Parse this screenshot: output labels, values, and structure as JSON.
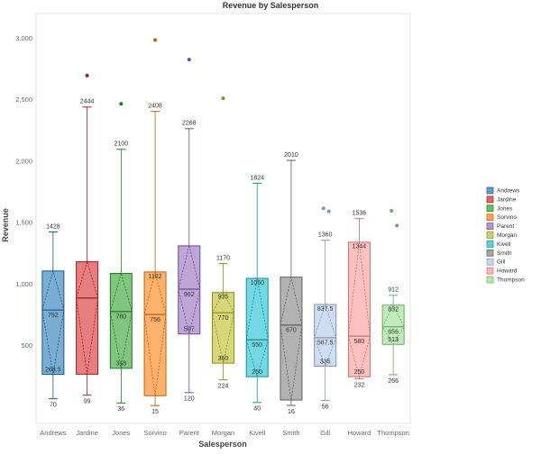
{
  "chart_data": {
    "type": "box",
    "title": "Revenue by Salesperson",
    "xlabel": "Salesperson",
    "ylabel": "Revenue",
    "ylim": [
      -130,
      3205
    ],
    "yticks": [
      500,
      1000,
      1500,
      2000,
      2500,
      3000
    ],
    "ytick_labels": [
      "500",
      "1,000",
      "1,500",
      "2,000",
      "2,500",
      "3,000"
    ],
    "grid": false,
    "legend_position": "right",
    "categories": [
      "Andrews",
      "Jardine",
      "Jones",
      "Sorvino",
      "Parent",
      "Morgan",
      "Kivell",
      "Smith",
      "Gill",
      "Howard",
      "Thompson"
    ],
    "series": [
      {
        "name": "Andrews",
        "color": "#1f77b4",
        "min": 70,
        "q1": 268.5,
        "median": 792,
        "q3": 1110,
        "max": 1428,
        "outliers": [],
        "labels": {
          "max": "1428",
          "median": "792",
          "q1": "268.5",
          "min": "70"
        }
      },
      {
        "name": "Jardine",
        "color": "#d62728",
        "min": 99,
        "q1": 270,
        "median": 890,
        "q3": 1185,
        "max": 2444,
        "outliers": [
          2700
        ],
        "labels": {
          "max": "2444",
          "min": "99"
        }
      },
      {
        "name": "Jones",
        "color": "#2ca02c",
        "min": 36,
        "q1": 318,
        "median": 780,
        "q3": 1090,
        "max": 2100,
        "outliers": [
          2470
        ],
        "labels": {
          "max": "2100",
          "median": "780",
          "q1": "318",
          "min": "36"
        }
      },
      {
        "name": "Sorvino",
        "color": "#ff7f0e",
        "min": 15,
        "q1": 95,
        "median": 756,
        "q3": 1102,
        "max": 2408,
        "outliers": [
          2990
        ],
        "labels": {
          "max": "2408",
          "q3": "1102",
          "median": "756",
          "min": "15"
        }
      },
      {
        "name": "Parent",
        "color": "#9467bd",
        "min": 120,
        "q1": 597,
        "median": 962,
        "q3": 1315,
        "max": 2268,
        "outliers": [
          2830
        ],
        "labels": {
          "max": "2268",
          "median": "962",
          "q1": "597",
          "min": "120"
        }
      },
      {
        "name": "Morgan",
        "color": "#bcbd22",
        "min": 224,
        "q1": 360,
        "median": 770,
        "q3": 935,
        "max": 1170,
        "outliers": [
          2515
        ],
        "labels": {
          "max": "1170",
          "q3": "935",
          "median": "770",
          "q1": "360",
          "min": "224"
        }
      },
      {
        "name": "Kivell",
        "color": "#17becf",
        "min": 40,
        "q1": 250,
        "median": 550,
        "q3": 1050,
        "max": 1824,
        "outliers": [],
        "labels": {
          "max": "1824",
          "q3": "1050",
          "median": "550",
          "q1": "250",
          "min": "40"
        }
      },
      {
        "name": "Smith",
        "color": "#7f7f7f",
        "min": 16,
        "q1": 60,
        "median": 670,
        "q3": 1060,
        "max": 2010,
        "outliers": [],
        "labels": {
          "max": "2010",
          "median": "670",
          "min": "16"
        }
      },
      {
        "name": "Gill",
        "color": "#aec7e8",
        "min": 56,
        "q1": 335,
        "median": 567.5,
        "q3": 837.5,
        "max": 1360,
        "outliers": [
          1620,
          1595
        ],
        "labels": {
          "max": "1360",
          "q3": "837.5",
          "median": "567.5",
          "q1": "335",
          "min": "56"
        }
      },
      {
        "name": "Howard",
        "color": "#ff9896",
        "min": 232,
        "q1": 250,
        "median": 580,
        "q3": 1344,
        "max": 1536,
        "outliers": [],
        "labels": {
          "max": "1536",
          "q3": "1344",
          "median": "580",
          "q1": "250",
          "min": "232"
        }
      },
      {
        "name": "Thompson",
        "color": "#98df8a",
        "min": 266,
        "q1": 513,
        "median": 656,
        "q3": 832,
        "max": 912,
        "outliers": [
          1600,
          1480
        ],
        "labels": {
          "max": "912",
          "q3": "832",
          "median": "656",
          "q1": "513",
          "min": "266"
        }
      }
    ]
  }
}
